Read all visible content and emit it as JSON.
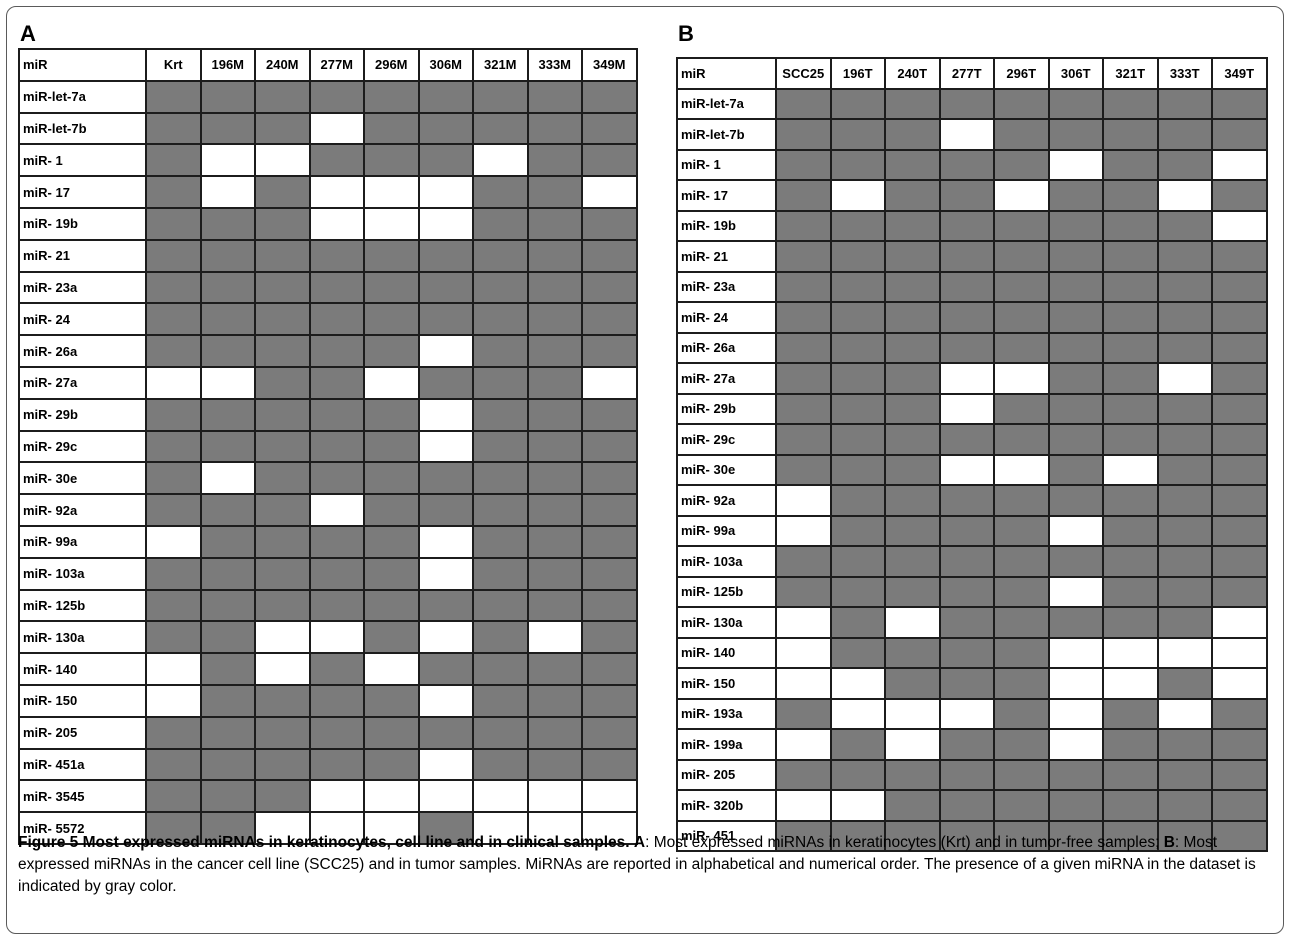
{
  "panel_a": {
    "letter": "A",
    "corner": "miR",
    "columns": [
      "Krt",
      "196M",
      "240M",
      "277M",
      "296M",
      "306M",
      "321M",
      "333M",
      "349M"
    ],
    "rows": [
      {
        "label": "miR-let-7a",
        "cells": [
          1,
          1,
          1,
          1,
          1,
          1,
          1,
          1,
          1
        ]
      },
      {
        "label": "miR-let-7b",
        "cells": [
          1,
          1,
          1,
          0,
          1,
          1,
          1,
          1,
          1
        ]
      },
      {
        "label": "miR- 1",
        "cells": [
          1,
          0,
          0,
          1,
          1,
          1,
          0,
          1,
          1
        ]
      },
      {
        "label": "miR- 17",
        "cells": [
          1,
          0,
          1,
          0,
          0,
          0,
          1,
          1,
          0
        ]
      },
      {
        "label": "miR- 19b",
        "cells": [
          1,
          1,
          1,
          0,
          0,
          0,
          1,
          1,
          1
        ]
      },
      {
        "label": "miR- 21",
        "cells": [
          1,
          1,
          1,
          1,
          1,
          1,
          1,
          1,
          1
        ]
      },
      {
        "label": "miR- 23a",
        "cells": [
          1,
          1,
          1,
          1,
          1,
          1,
          1,
          1,
          1
        ]
      },
      {
        "label": "miR- 24",
        "cells": [
          1,
          1,
          1,
          1,
          1,
          1,
          1,
          1,
          1
        ]
      },
      {
        "label": "miR- 26a",
        "cells": [
          1,
          1,
          1,
          1,
          1,
          0,
          1,
          1,
          1
        ]
      },
      {
        "label": "miR- 27a",
        "cells": [
          0,
          0,
          1,
          1,
          0,
          1,
          1,
          1,
          0
        ]
      },
      {
        "label": "miR- 29b",
        "cells": [
          1,
          1,
          1,
          1,
          1,
          0,
          1,
          1,
          1
        ]
      },
      {
        "label": "miR- 29c",
        "cells": [
          1,
          1,
          1,
          1,
          1,
          0,
          1,
          1,
          1
        ]
      },
      {
        "label": "miR- 30e",
        "cells": [
          1,
          0,
          1,
          1,
          1,
          1,
          1,
          1,
          1
        ]
      },
      {
        "label": "miR- 92a",
        "cells": [
          1,
          1,
          1,
          0,
          1,
          1,
          1,
          1,
          1
        ]
      },
      {
        "label": "miR- 99a",
        "cells": [
          0,
          1,
          1,
          1,
          1,
          0,
          1,
          1,
          1
        ]
      },
      {
        "label": "miR- 103a",
        "cells": [
          1,
          1,
          1,
          1,
          1,
          0,
          1,
          1,
          1
        ]
      },
      {
        "label": "miR- 125b",
        "cells": [
          1,
          1,
          1,
          1,
          1,
          1,
          1,
          1,
          1
        ]
      },
      {
        "label": "miR- 130a",
        "cells": [
          1,
          1,
          0,
          0,
          1,
          0,
          1,
          0,
          1
        ]
      },
      {
        "label": "miR- 140",
        "cells": [
          0,
          1,
          0,
          1,
          0,
          1,
          1,
          1,
          1
        ]
      },
      {
        "label": "miR- 150",
        "cells": [
          0,
          1,
          1,
          1,
          1,
          0,
          1,
          1,
          1
        ]
      },
      {
        "label": "miR- 205",
        "cells": [
          1,
          1,
          1,
          1,
          1,
          1,
          1,
          1,
          1
        ]
      },
      {
        "label": "miR- 451a",
        "cells": [
          1,
          1,
          1,
          1,
          1,
          0,
          1,
          1,
          1
        ]
      },
      {
        "label": "miR- 3545",
        "cells": [
          1,
          1,
          1,
          0,
          0,
          0,
          0,
          0,
          0
        ]
      },
      {
        "label": "miR- 5572",
        "cells": [
          1,
          1,
          0,
          0,
          0,
          1,
          0,
          0,
          0
        ]
      }
    ]
  },
  "panel_b": {
    "letter": "B",
    "corner": "miR",
    "columns": [
      "SCC25",
      "196T",
      "240T",
      "277T",
      "296T",
      "306T",
      "321T",
      "333T",
      "349T"
    ],
    "rows": [
      {
        "label": "miR-let-7a",
        "cells": [
          1,
          1,
          1,
          1,
          1,
          1,
          1,
          1,
          1
        ]
      },
      {
        "label": "miR-let-7b",
        "cells": [
          1,
          1,
          1,
          0,
          1,
          1,
          1,
          1,
          1
        ]
      },
      {
        "label": "miR- 1",
        "cells": [
          1,
          1,
          1,
          1,
          1,
          0,
          1,
          1,
          0
        ]
      },
      {
        "label": "miR- 17",
        "cells": [
          1,
          0,
          1,
          1,
          0,
          1,
          1,
          0,
          1
        ]
      },
      {
        "label": "miR- 19b",
        "cells": [
          1,
          1,
          1,
          1,
          1,
          1,
          1,
          1,
          0
        ]
      },
      {
        "label": "miR- 21",
        "cells": [
          1,
          1,
          1,
          1,
          1,
          1,
          1,
          1,
          1
        ]
      },
      {
        "label": "miR- 23a",
        "cells": [
          1,
          1,
          1,
          1,
          1,
          1,
          1,
          1,
          1
        ]
      },
      {
        "label": "miR- 24",
        "cells": [
          1,
          1,
          1,
          1,
          1,
          1,
          1,
          1,
          1
        ]
      },
      {
        "label": "miR- 26a",
        "cells": [
          1,
          1,
          1,
          1,
          1,
          1,
          1,
          1,
          1
        ]
      },
      {
        "label": "miR- 27a",
        "cells": [
          1,
          1,
          1,
          0,
          0,
          1,
          1,
          0,
          1
        ]
      },
      {
        "label": "miR- 29b",
        "cells": [
          1,
          1,
          1,
          0,
          1,
          1,
          1,
          1,
          1
        ]
      },
      {
        "label": "miR- 29c",
        "cells": [
          1,
          1,
          1,
          1,
          1,
          1,
          1,
          1,
          1
        ]
      },
      {
        "label": "miR- 30e",
        "cells": [
          1,
          1,
          1,
          0,
          0,
          1,
          0,
          1,
          1
        ]
      },
      {
        "label": "miR- 92a",
        "cells": [
          0,
          1,
          1,
          1,
          1,
          1,
          1,
          1,
          1
        ]
      },
      {
        "label": "miR- 99a",
        "cells": [
          0,
          1,
          1,
          1,
          1,
          0,
          1,
          1,
          1
        ]
      },
      {
        "label": "miR- 103a",
        "cells": [
          1,
          1,
          1,
          1,
          1,
          1,
          1,
          1,
          1
        ]
      },
      {
        "label": "miR- 125b",
        "cells": [
          1,
          1,
          1,
          1,
          1,
          0,
          1,
          1,
          1
        ]
      },
      {
        "label": "miR- 130a",
        "cells": [
          0,
          1,
          0,
          1,
          1,
          1,
          1,
          1,
          0
        ]
      },
      {
        "label": "miR- 140",
        "cells": [
          0,
          1,
          1,
          1,
          1,
          0,
          0,
          0,
          0
        ]
      },
      {
        "label": "miR- 150",
        "cells": [
          0,
          0,
          1,
          1,
          1,
          0,
          0,
          1,
          0
        ]
      },
      {
        "label": "miR- 193a",
        "cells": [
          1,
          0,
          0,
          0,
          1,
          0,
          1,
          0,
          1
        ]
      },
      {
        "label": "miR- 199a",
        "cells": [
          0,
          1,
          0,
          1,
          1,
          0,
          1,
          1,
          1
        ]
      },
      {
        "label": "miR- 205",
        "cells": [
          1,
          1,
          1,
          1,
          1,
          1,
          1,
          1,
          1
        ]
      },
      {
        "label": "miR- 320b",
        "cells": [
          0,
          0,
          1,
          1,
          1,
          1,
          1,
          1,
          1
        ]
      },
      {
        "label": "miR- 451",
        "cells": [
          1,
          1,
          1,
          1,
          1,
          1,
          1,
          1,
          1
        ]
      }
    ]
  },
  "colors": {
    "present": "#7b7b7b",
    "absent": "#ffffff"
  },
  "caption": {
    "title": "Figure 5 Most expressed miRNAs in keratinocytes, cell line and in clinical samples.",
    "a_key": "A",
    "a_text": ": Most expressed miRNAs in keratinocytes (Krt) and in tumor-free samples; ",
    "b_key": "B",
    "b_text": ": Most expressed miRNAs in the cancer cell line (SCC25) and in tumor samples. MiRNAs are reported in alphabetical and numerical order. The presence of a given miRNA in the dataset is indicated by gray color."
  }
}
